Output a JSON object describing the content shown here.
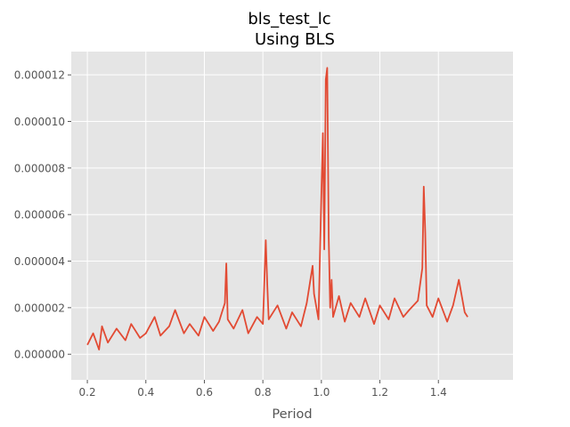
{
  "chart_data": {
    "type": "line",
    "title": "bls_test_lc",
    "subtitle": "Using BLS",
    "xlabel": "Period",
    "ylabel": "",
    "xlim": [
      0.145,
      1.655
    ],
    "ylim": [
      -1.1e-06,
      1.3e-05
    ],
    "xticks": [
      0.2,
      0.4,
      0.6,
      0.8,
      1.0,
      1.2,
      1.4
    ],
    "xtick_labels": [
      "0.2",
      "0.4",
      "0.6",
      "0.8",
      "1.0",
      "1.2",
      "1.4"
    ],
    "yticks": [
      0,
      2e-06,
      4e-06,
      6e-06,
      8e-06,
      1e-05,
      1.2e-05
    ],
    "ytick_labels": [
      "0.000000",
      "0.000002",
      "0.000004",
      "0.000006",
      "0.000008",
      "0.000010",
      "0.000012"
    ],
    "grid": true,
    "style": "ggplot",
    "colors": {
      "line": "#E24A33",
      "panel": "#E5E5E5",
      "grid": "#FFFFFF"
    },
    "series": [
      {
        "x": [
          0.2,
          0.22,
          0.24,
          0.25,
          0.27,
          0.3,
          0.33,
          0.35,
          0.38,
          0.4,
          0.43,
          0.45,
          0.48,
          0.5,
          0.53,
          0.55,
          0.58,
          0.6,
          0.63,
          0.65,
          0.67,
          0.675,
          0.68,
          0.7,
          0.73,
          0.75,
          0.78,
          0.8,
          0.81,
          0.815,
          0.82,
          0.85,
          0.88,
          0.9,
          0.93,
          0.95,
          0.97,
          0.975,
          0.99,
          1.0,
          1.005,
          1.01,
          1.015,
          1.02,
          1.025,
          1.03,
          1.035,
          1.04,
          1.06,
          1.08,
          1.1,
          1.13,
          1.15,
          1.18,
          1.2,
          1.23,
          1.25,
          1.28,
          1.3,
          1.33,
          1.345,
          1.35,
          1.355,
          1.36,
          1.38,
          1.4,
          1.43,
          1.45,
          1.47,
          1.49,
          1.5
        ],
        "y": [
          4e-07,
          9e-07,
          2e-07,
          1.2e-06,
          5e-07,
          1.1e-06,
          6e-07,
          1.3e-06,
          7e-07,
          9e-07,
          1.6e-06,
          8e-07,
          1.2e-06,
          1.9e-06,
          9e-07,
          1.3e-06,
          8e-07,
          1.6e-06,
          1e-06,
          1.4e-06,
          2.2e-06,
          3.9e-06,
          1.5e-06,
          1.1e-06,
          1.9e-06,
          9e-07,
          1.6e-06,
          1.3e-06,
          4.9e-06,
          3e-06,
          1.5e-06,
          2.1e-06,
          1.1e-06,
          1.8e-06,
          1.2e-06,
          2.2e-06,
          3.8e-06,
          2.6e-06,
          1.5e-06,
          6.8e-06,
          9.5e-06,
          4.5e-06,
          1.18e-05,
          1.23e-05,
          5e-06,
          2e-06,
          3.2e-06,
          1.6e-06,
          2.5e-06,
          1.4e-06,
          2.2e-06,
          1.6e-06,
          2.4e-06,
          1.3e-06,
          2.1e-06,
          1.5e-06,
          2.4e-06,
          1.6e-06,
          1.9e-06,
          2.3e-06,
          3.7e-06,
          7.2e-06,
          5.2e-06,
          2.1e-06,
          1.6e-06,
          2.4e-06,
          1.4e-06,
          2.1e-06,
          3.2e-06,
          1.8e-06,
          1.6e-06
        ]
      }
    ]
  }
}
